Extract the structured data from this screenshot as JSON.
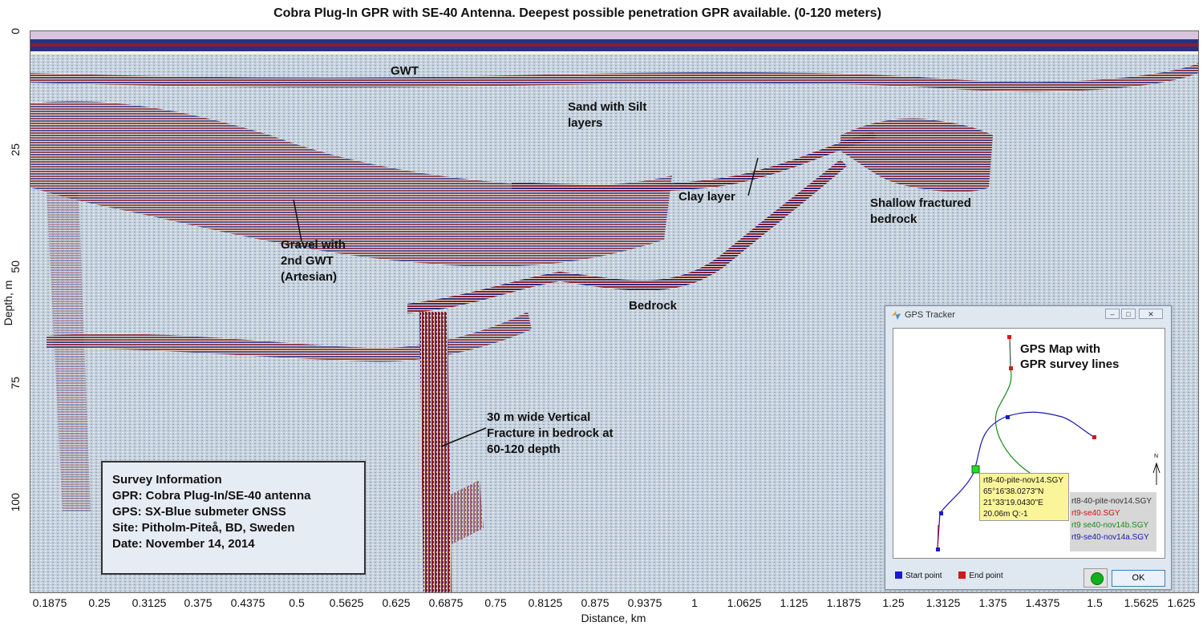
{
  "title": "Cobra Plug-In GPR with SE-40 Antenna. Deepest possible penetration GPR available. (0-120 meters)",
  "y_axis": {
    "label": "Depth, m",
    "ticks": [
      "0",
      "25",
      "50",
      "75",
      "100"
    ]
  },
  "x_axis": {
    "label": "Distance, km",
    "ticks": [
      "0.1875",
      "0.25",
      "0.3125",
      "0.375",
      "0.4375",
      "0.5",
      "0.5625",
      "0.625",
      "0.6875",
      "0.75",
      "0.8125",
      "0.875",
      "0.9375",
      "1",
      "1.0625",
      "1.125",
      "1.1875",
      "1.25",
      "1.3125",
      "1.375",
      "1.4375",
      "1.5",
      "1.5625",
      "1.625"
    ]
  },
  "annotations": {
    "gwt": "GWT",
    "sand_1": "Sand with Silt",
    "sand_2": "layers",
    "clay": "Clay layer",
    "shallow_1": "Shallow fractured",
    "shallow_2": "bedrock",
    "gravel_1": "Gravel with",
    "gravel_2": "2nd GWT",
    "gravel_3": "(Artesian)",
    "bedrock": "Bedrock",
    "fracture_1": "30 m wide Vertical",
    "fracture_2": "Fracture in bedrock at",
    "fracture_3": "60-120 depth"
  },
  "survey_info": {
    "heading": "Survey Information",
    "gpr": "GPR: Cobra Plug-In/SE-40 antenna",
    "gps": "GPS: SX-Blue submeter GNSS",
    "site": "Site: Pitholm-Piteå, BD, Sweden",
    "date": "Date: November 14, 2014"
  },
  "gps_window": {
    "title": "GPS Tracker",
    "map_title_1": "GPS Map with",
    "map_title_2": "GPR survey lines",
    "north": "N",
    "tooltip": {
      "file": "rt8-40-pite-nov14.SGY",
      "lat": "65°16'38.0273''N",
      "lon": "21°33'19.0430''E",
      "extra": "20.06m Q:-1"
    },
    "legend": [
      {
        "label": "rt8-40-pite-nov14.SGY",
        "color": "#333333"
      },
      {
        "label": "rt9-se40.SGY",
        "color": "#d01010"
      },
      {
        "label": "rt9 se40-nov14b.SGY",
        "color": "#1a8a1a"
      },
      {
        "label": "rt9-se40-nov14a.SGY",
        "color": "#1818b0"
      }
    ],
    "start_label": "Start point",
    "end_label": "End point",
    "ok_label": "OK",
    "colors": {
      "start": "#1a1ad0",
      "end": "#d01a1a"
    }
  }
}
